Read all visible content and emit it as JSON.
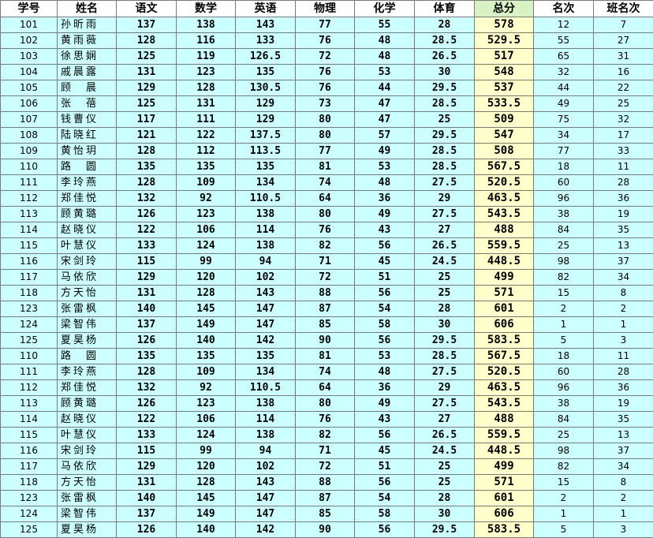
{
  "headers": [
    "学号",
    "姓名",
    "语文",
    "数学",
    "英语",
    "物理",
    "化学",
    "体育",
    "总分",
    "名次",
    "班名次"
  ],
  "rows": [
    [
      "101",
      "孙昕雨",
      "137",
      "138",
      "143",
      "77",
      "55",
      "28",
      "578",
      "12",
      "7"
    ],
    [
      "102",
      "黄雨薇",
      "128",
      "116",
      "133",
      "76",
      "48",
      "28.5",
      "529.5",
      "55",
      "27"
    ],
    [
      "103",
      "徐思娴",
      "125",
      "119",
      "126.5",
      "72",
      "48",
      "26.5",
      "517",
      "65",
      "31"
    ],
    [
      "104",
      "戚晨露",
      "131",
      "123",
      "135",
      "76",
      "53",
      "30",
      "548",
      "32",
      "16"
    ],
    [
      "105",
      "顾　晨",
      "129",
      "128",
      "130.5",
      "76",
      "44",
      "29.5",
      "537",
      "44",
      "22"
    ],
    [
      "106",
      "张　蓓",
      "125",
      "131",
      "129",
      "73",
      "47",
      "28.5",
      "533.5",
      "49",
      "25"
    ],
    [
      "107",
      "钱曹仪",
      "117",
      "111",
      "129",
      "80",
      "47",
      "25",
      "509",
      "75",
      "32"
    ],
    [
      "108",
      "陆晓红",
      "121",
      "122",
      "137.5",
      "80",
      "57",
      "29.5",
      "547",
      "34",
      "17"
    ],
    [
      "109",
      "黄怡玥",
      "128",
      "112",
      "113.5",
      "77",
      "49",
      "28.5",
      "508",
      "77",
      "33"
    ],
    [
      "110",
      "路　圆",
      "135",
      "135",
      "135",
      "81",
      "53",
      "28.5",
      "567.5",
      "18",
      "11"
    ],
    [
      "111",
      "李玲燕",
      "128",
      "109",
      "134",
      "74",
      "48",
      "27.5",
      "520.5",
      "60",
      "28"
    ],
    [
      "112",
      "郑佳悦",
      "132",
      "92",
      "110.5",
      "64",
      "36",
      "29",
      "463.5",
      "96",
      "36"
    ],
    [
      "113",
      "顾黄璐",
      "126",
      "123",
      "138",
      "80",
      "49",
      "27.5",
      "543.5",
      "38",
      "19"
    ],
    [
      "114",
      "赵晓仪",
      "122",
      "106",
      "114",
      "76",
      "43",
      "27",
      "488",
      "84",
      "35"
    ],
    [
      "115",
      "叶慧仪",
      "133",
      "124",
      "138",
      "82",
      "56",
      "26.5",
      "559.5",
      "25",
      "13"
    ],
    [
      "116",
      "宋剑玲",
      "115",
      "99",
      "94",
      "71",
      "45",
      "24.5",
      "448.5",
      "98",
      "37"
    ],
    [
      "117",
      "马依欣",
      "129",
      "120",
      "102",
      "72",
      "51",
      "25",
      "499",
      "82",
      "34"
    ],
    [
      "118",
      "方天怡",
      "131",
      "128",
      "143",
      "88",
      "56",
      "25",
      "571",
      "15",
      "8"
    ],
    [
      "123",
      "张雷枫",
      "140",
      "145",
      "147",
      "87",
      "54",
      "28",
      "601",
      "2",
      "2"
    ],
    [
      "124",
      "梁智伟",
      "137",
      "149",
      "147",
      "85",
      "58",
      "30",
      "606",
      "1",
      "1"
    ],
    [
      "125",
      "夏昊杨",
      "126",
      "140",
      "142",
      "90",
      "56",
      "29.5",
      "583.5",
      "5",
      "3"
    ],
    [
      "110",
      "路　圆",
      "135",
      "135",
      "135",
      "81",
      "53",
      "28.5",
      "567.5",
      "18",
      "11"
    ],
    [
      "111",
      "李玲燕",
      "128",
      "109",
      "134",
      "74",
      "48",
      "27.5",
      "520.5",
      "60",
      "28"
    ],
    [
      "112",
      "郑佳悦",
      "132",
      "92",
      "110.5",
      "64",
      "36",
      "29",
      "463.5",
      "96",
      "36"
    ],
    [
      "113",
      "顾黄璐",
      "126",
      "123",
      "138",
      "80",
      "49",
      "27.5",
      "543.5",
      "38",
      "19"
    ],
    [
      "114",
      "赵晓仪",
      "122",
      "106",
      "114",
      "76",
      "43",
      "27",
      "488",
      "84",
      "35"
    ],
    [
      "115",
      "叶慧仪",
      "133",
      "124",
      "138",
      "82",
      "56",
      "26.5",
      "559.5",
      "25",
      "13"
    ],
    [
      "116",
      "宋剑玲",
      "115",
      "99",
      "94",
      "71",
      "45",
      "24.5",
      "448.5",
      "98",
      "37"
    ],
    [
      "117",
      "马依欣",
      "129",
      "120",
      "102",
      "72",
      "51",
      "25",
      "499",
      "82",
      "34"
    ],
    [
      "118",
      "方天怡",
      "131",
      "128",
      "143",
      "88",
      "56",
      "25",
      "571",
      "15",
      "8"
    ],
    [
      "123",
      "张雷枫",
      "140",
      "145",
      "147",
      "87",
      "54",
      "28",
      "601",
      "2",
      "2"
    ],
    [
      "124",
      "梁智伟",
      "137",
      "149",
      "147",
      "85",
      "58",
      "30",
      "606",
      "1",
      "1"
    ],
    [
      "125",
      "夏昊杨",
      "126",
      "140",
      "142",
      "90",
      "56",
      "29.5",
      "583.5",
      "5",
      "3"
    ]
  ],
  "colors": {
    "row_background": "#ccffff",
    "total_background": "#ffffcc",
    "total_header_background": "#d9f2c4",
    "grid_line": "#7a7a7a"
  }
}
